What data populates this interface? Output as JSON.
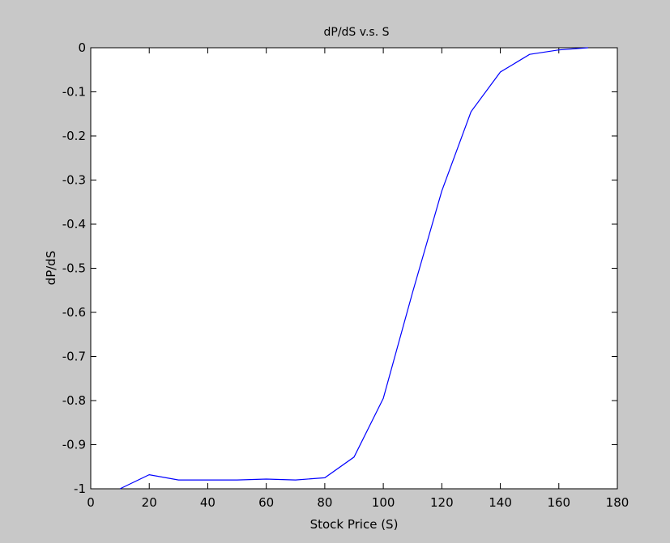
{
  "chart_data": {
    "type": "line",
    "title": "dP/dS v.s. S",
    "xlabel": "Stock Price (S)",
    "ylabel": "dP/dS",
    "xlim": [
      0,
      180
    ],
    "ylim": [
      -1,
      0
    ],
    "xticks": [
      0,
      20,
      40,
      60,
      80,
      100,
      120,
      140,
      160,
      180
    ],
    "yticks": [
      0,
      -0.1,
      -0.2,
      -0.3,
      -0.4,
      -0.5,
      -0.6,
      -0.7,
      -0.8,
      -0.9,
      -1
    ],
    "xtick_labels": [
      "0",
      "20",
      "40",
      "60",
      "80",
      "100",
      "120",
      "140",
      "160",
      "180"
    ],
    "ytick_labels": [
      "0",
      "-0.1",
      "-0.2",
      "-0.3",
      "-0.4",
      "-0.5",
      "-0.6",
      "-0.7",
      "-0.8",
      "-0.9",
      "-1"
    ],
    "grid": false,
    "series": [
      {
        "color": "#0000ff",
        "x": [
          10,
          20,
          30,
          40,
          50,
          60,
          70,
          80,
          90,
          100,
          110,
          120,
          130,
          140,
          150,
          160,
          170
        ],
        "y": [
          -1.0,
          -0.968,
          -0.98,
          -0.98,
          -0.98,
          -0.978,
          -0.98,
          -0.975,
          -0.928,
          -0.795,
          -0.555,
          -0.325,
          -0.145,
          -0.055,
          -0.015,
          -0.005,
          0.0
        ]
      }
    ]
  },
  "colors": {
    "figure_background": "#c8c8c8",
    "axes_background": "#ffffff",
    "axes_edge": "#000000",
    "line": "#0000ff"
  }
}
